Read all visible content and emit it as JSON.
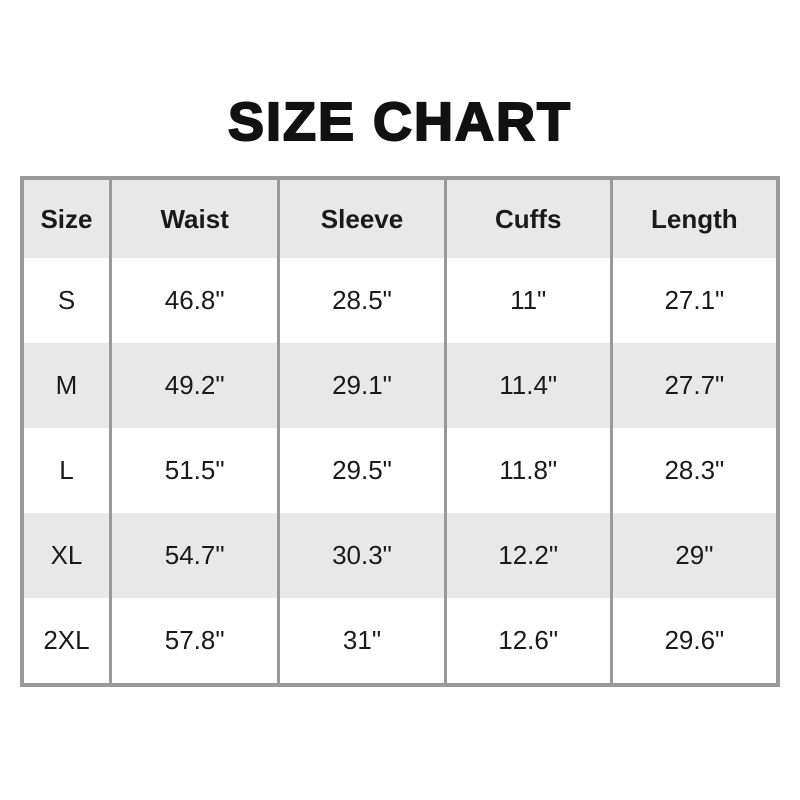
{
  "title": "SIZE CHART",
  "table": {
    "columns": [
      "Size",
      "Waist",
      "Sleeve",
      "Cuffs",
      "Length"
    ],
    "rows": [
      {
        "cells": [
          "S",
          "46.8\"",
          "28.5\"",
          "11\"",
          "27.1\""
        ]
      },
      {
        "cells": [
          "M",
          "49.2\"",
          "29.1\"",
          "11.4\"",
          "27.7\""
        ]
      },
      {
        "cells": [
          "L",
          "51.5\"",
          "29.5\"",
          "11.8\"",
          "28.3\""
        ]
      },
      {
        "cells": [
          "XL",
          "54.7\"",
          "30.3\"",
          "12.2\"",
          "29\""
        ]
      },
      {
        "cells": [
          "2XL",
          "57.8\"",
          "31\"",
          "12.6\"",
          "29.6\""
        ]
      }
    ]
  },
  "chart_data": {
    "type": "table",
    "title": "SIZE CHART",
    "columns": [
      "Size",
      "Waist",
      "Sleeve",
      "Cuffs",
      "Length"
    ],
    "rows": [
      [
        "S",
        46.8,
        28.5,
        11,
        27.1
      ],
      [
        "M",
        49.2,
        29.1,
        11.4,
        27.7
      ],
      [
        "L",
        51.5,
        29.5,
        11.8,
        28.3
      ],
      [
        "XL",
        54.7,
        30.3,
        12.2,
        29
      ],
      [
        "2XL",
        57.8,
        31,
        12.6,
        29.6
      ]
    ],
    "units": "inches"
  },
  "colors": {
    "border": "#999999",
    "row_alt_bg": "#e8e8e8",
    "row_bg": "#ffffff",
    "text": "#1a1a1a"
  }
}
